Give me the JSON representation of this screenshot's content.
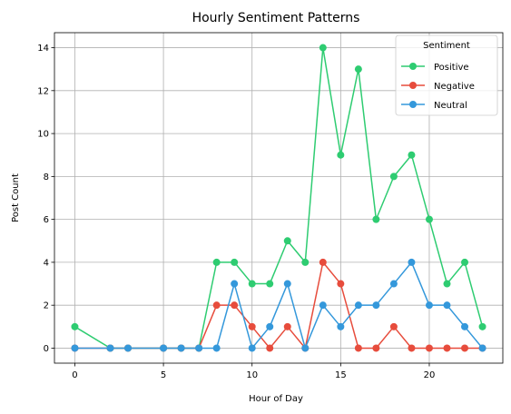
{
  "chart_data": {
    "type": "line",
    "title": "Hourly Sentiment Patterns",
    "xlabel": "Hour of Day",
    "ylabel": "Post Count",
    "xlim": [
      -1.15,
      24.15
    ],
    "ylim": [
      -0.7,
      14.7
    ],
    "xticks": [
      0,
      5,
      10,
      15,
      20
    ],
    "yticks": [
      0,
      2,
      4,
      6,
      8,
      10,
      12,
      14
    ],
    "grid": true,
    "legend": {
      "title": "Sentiment",
      "placement": "top-right"
    },
    "x": [
      0,
      2,
      3,
      5,
      6,
      7,
      8,
      9,
      10,
      11,
      12,
      13,
      14,
      15,
      16,
      17,
      18,
      19,
      20,
      21,
      22,
      23
    ],
    "series": [
      {
        "name": "Positive",
        "color": "#2ecc71",
        "values": [
          1,
          0,
          0,
          0,
          0,
          0,
          4,
          4,
          3,
          3,
          5,
          4,
          14,
          9,
          13,
          6,
          8,
          9,
          6,
          3,
          4,
          1
        ]
      },
      {
        "name": "Negative",
        "color": "#e74c3c",
        "values": [
          0,
          0,
          0,
          0,
          0,
          0,
          2,
          2,
          1,
          0,
          1,
          0,
          4,
          3,
          0,
          0,
          1,
          0,
          0,
          0,
          0,
          0
        ]
      },
      {
        "name": "Neutral",
        "color": "#3498db",
        "values": [
          0,
          0,
          0,
          0,
          0,
          0,
          0,
          3,
          0,
          1,
          3,
          0,
          2,
          1,
          2,
          2,
          3,
          4,
          2,
          2,
          1,
          0
        ]
      }
    ]
  }
}
